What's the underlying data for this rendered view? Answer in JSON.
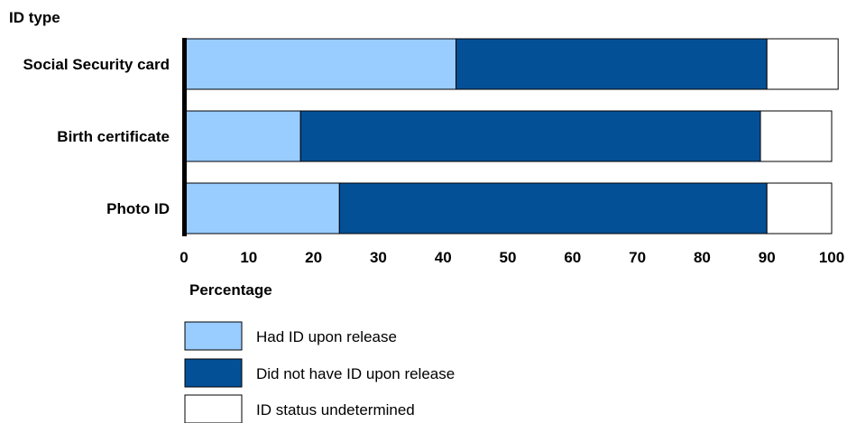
{
  "chart_data": {
    "type": "bar",
    "orientation": "horizontal",
    "stacked": true,
    "y_axis_title": "ID type",
    "xlabel": "Percentage",
    "xlim": [
      0,
      100
    ],
    "xticks": [
      "0",
      "10",
      "20",
      "30",
      "40",
      "50",
      "60",
      "70",
      "80",
      "90",
      "100"
    ],
    "categories": [
      "Social Security card",
      "Birth certificate",
      "Photo ID"
    ],
    "series": [
      {
        "name": "Had ID upon release",
        "color": "#99ccff",
        "values": [
          42,
          18,
          24
        ]
      },
      {
        "name": "Did not have ID upon release",
        "color": "#045097",
        "values": [
          48,
          71,
          66
        ]
      },
      {
        "name": "ID status undetermined",
        "color": "#ffffff",
        "values": [
          11,
          11,
          10
        ]
      }
    ],
    "legend_position": "bottom-left",
    "grid": false
  }
}
